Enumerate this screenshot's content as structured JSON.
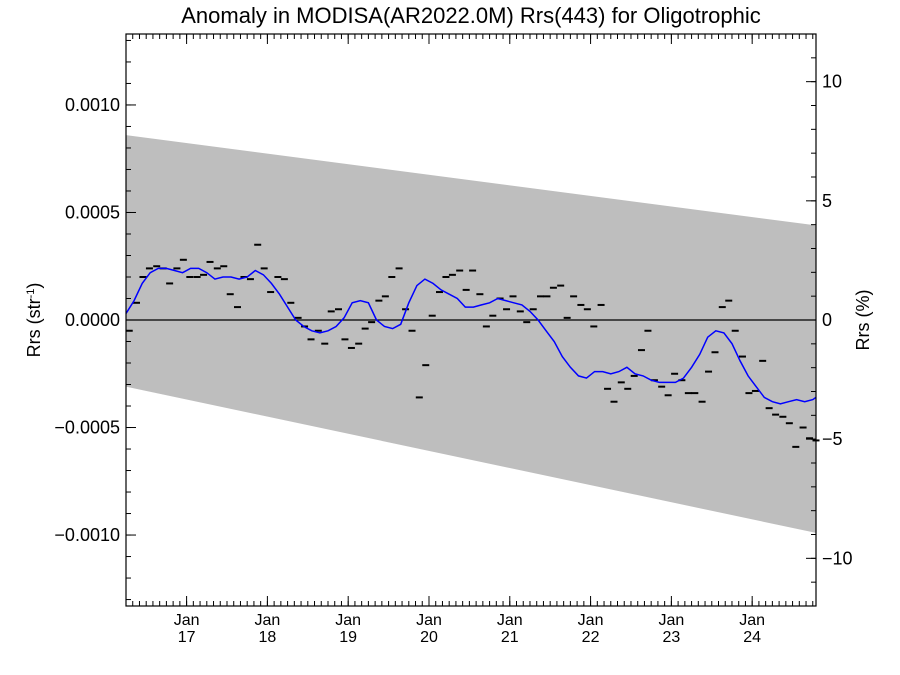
{
  "chart_data": {
    "type": "line",
    "title": "Anomaly in MODISA(AR2022.0M) Rrs(443) for Oligotrophic",
    "ylabel_left": "Rrs (str",
    "ylabel_left_sup": "-1",
    "ylabel_left_close": ")",
    "ylabel_right": "Rrs (%)",
    "xlim": [
      2016.25,
      2024.79
    ],
    "ylim_left": [
      -0.00133,
      0.00133
    ],
    "ylim_right": [
      -12.0,
      12.0
    ],
    "left_ticks": [
      {
        "value": 0.001,
        "label": "0.0010"
      },
      {
        "value": 0.0005,
        "label": "0.0005"
      },
      {
        "value": 0.0,
        "label": "0.0000"
      },
      {
        "value": -0.0005,
        "label": "−0.0005"
      },
      {
        "value": -0.001,
        "label": "−0.0010"
      }
    ],
    "right_ticks": [
      {
        "value": 10,
        "label": "10"
      },
      {
        "value": 5,
        "label": "5"
      },
      {
        "value": 0,
        "label": "0"
      },
      {
        "value": -5,
        "label": "−5"
      },
      {
        "value": -10,
        "label": "−10"
      }
    ],
    "x_ticks": [
      {
        "value": 2017.0,
        "month": "Jan",
        "year": "17"
      },
      {
        "value": 2018.0,
        "month": "Jan",
        "year": "18"
      },
      {
        "value": 2019.0,
        "month": "Jan",
        "year": "19"
      },
      {
        "value": 2020.0,
        "month": "Jan",
        "year": "20"
      },
      {
        "value": 2021.0,
        "month": "Jan",
        "year": "21"
      },
      {
        "value": 2022.0,
        "month": "Jan",
        "year": "22"
      },
      {
        "value": 2023.0,
        "month": "Jan",
        "year": "23"
      },
      {
        "value": 2024.0,
        "month": "Jan",
        "year": "24"
      }
    ],
    "band": {
      "x": [
        2016.25,
        2024.79
      ],
      "upper": [
        0.00086,
        0.00044
      ],
      "lower": [
        -0.00031,
        -0.00099
      ],
      "color": "#bebebe"
    },
    "colors": {
      "band": "#bebebe",
      "smooth_line": "#0000ff",
      "monthly_marks": "#000000",
      "zero_line": "#000000"
    },
    "series": [
      {
        "kind": "monthly-anomaly-marks",
        "x": [
          2016.29,
          2016.38,
          2016.46,
          2016.54,
          2016.63,
          2016.71,
          2016.79,
          2016.88,
          2016.96,
          2017.04,
          2017.13,
          2017.21,
          2017.29,
          2017.38,
          2017.46,
          2017.54,
          2017.63,
          2017.71,
          2017.79,
          2017.88,
          2017.96,
          2018.04,
          2018.13,
          2018.21,
          2018.29,
          2018.38,
          2018.46,
          2018.54,
          2018.63,
          2018.71,
          2018.79,
          2018.88,
          2018.96,
          2019.04,
          2019.13,
          2019.21,
          2019.29,
          2019.38,
          2019.46,
          2019.54,
          2019.63,
          2019.71,
          2019.79,
          2019.88,
          2019.96,
          2020.04,
          2020.13,
          2020.21,
          2020.29,
          2020.38,
          2020.46,
          2020.54,
          2020.63,
          2020.71,
          2020.79,
          2020.88,
          2020.96,
          2021.04,
          2021.13,
          2021.21,
          2021.29,
          2021.38,
          2021.46,
          2021.54,
          2021.63,
          2021.71,
          2021.79,
          2021.88,
          2021.96,
          2022.04,
          2022.13,
          2022.21,
          2022.29,
          2022.38,
          2022.46,
          2022.54,
          2022.63,
          2022.71,
          2022.79,
          2022.88,
          2022.96,
          2023.04,
          2023.13,
          2023.21,
          2023.29,
          2023.38,
          2023.46,
          2023.54,
          2023.63,
          2023.71,
          2023.79,
          2023.88,
          2023.96,
          2024.04,
          2024.13,
          2024.21,
          2024.29,
          2024.38,
          2024.46,
          2024.54,
          2024.63,
          2024.71,
          2024.79
        ],
        "values": [
          -5e-05,
          8e-05,
          0.0002,
          0.00024,
          0.00025,
          0.00024,
          0.00017,
          0.00024,
          0.00028,
          0.0002,
          0.0002,
          0.00021,
          0.00027,
          0.00024,
          0.00025,
          0.00012,
          6e-05,
          0.0002,
          0.00019,
          0.00035,
          0.00024,
          0.00013,
          0.0002,
          0.00019,
          8e-05,
          1e-05,
          -3e-05,
          -9e-05,
          -5e-05,
          -0.00011,
          4e-05,
          5e-05,
          -9e-05,
          -0.00013,
          -0.00011,
          -4e-05,
          -1e-05,
          9e-05,
          0.00011,
          0.0002,
          0.00024,
          5e-05,
          -5e-05,
          -0.00036,
          -0.00021,
          2e-05,
          0.00013,
          0.0002,
          0.00021,
          0.00023,
          0.00014,
          0.00023,
          0.00012,
          -3e-05,
          2e-05,
          0.0001,
          5e-05,
          0.00011,
          4e-05,
          -1e-05,
          5e-05,
          0.00011,
          0.00011,
          0.00015,
          0.00016,
          1e-05,
          0.00011,
          7e-05,
          5e-05,
          -3e-05,
          7e-05,
          -0.00032,
          -0.00038,
          -0.00029,
          -0.00032,
          -0.00026,
          -0.00014,
          -5e-05,
          -0.00028,
          -0.00031,
          -0.00035,
          -0.00025,
          -0.00028,
          -0.00034,
          -0.00034,
          -0.00038,
          -0.00024,
          -0.00015,
          6e-05,
          9e-05,
          -5e-05,
          -0.00017,
          -0.00034,
          -0.00033,
          -0.00019,
          -0.00041,
          -0.00044,
          -0.00045,
          -0.00048,
          -0.00059,
          -0.0005,
          -0.00055,
          -0.00056
        ]
      },
      {
        "kind": "running-mean-line",
        "x": [
          2016.25,
          2016.35,
          2016.45,
          2016.55,
          2016.65,
          2016.75,
          2016.85,
          2016.95,
          2017.05,
          2017.15,
          2017.25,
          2017.35,
          2017.45,
          2017.55,
          2017.65,
          2017.75,
          2017.85,
          2017.95,
          2018.05,
          2018.15,
          2018.25,
          2018.35,
          2018.45,
          2018.55,
          2018.65,
          2018.75,
          2018.85,
          2018.95,
          2019.05,
          2019.15,
          2019.25,
          2019.35,
          2019.45,
          2019.55,
          2019.65,
          2019.75,
          2019.85,
          2019.95,
          2020.05,
          2020.15,
          2020.25,
          2020.35,
          2020.45,
          2020.55,
          2020.65,
          2020.75,
          2020.85,
          2020.95,
          2021.05,
          2021.15,
          2021.25,
          2021.35,
          2021.45,
          2021.55,
          2021.65,
          2021.75,
          2021.85,
          2021.95,
          2022.05,
          2022.15,
          2022.25,
          2022.35,
          2022.45,
          2022.55,
          2022.65,
          2022.75,
          2022.85,
          2022.95,
          2023.05,
          2023.15,
          2023.25,
          2023.35,
          2023.45,
          2023.55,
          2023.65,
          2023.75,
          2023.85,
          2023.95,
          2024.05,
          2024.15,
          2024.25,
          2024.35,
          2024.45,
          2024.55,
          2024.65,
          2024.75,
          2024.79
        ],
        "values": [
          3e-05,
          9e-05,
          0.00017,
          0.00022,
          0.00024,
          0.00024,
          0.00023,
          0.00022,
          0.00024,
          0.00024,
          0.00022,
          0.00019,
          0.0002,
          0.0002,
          0.00019,
          0.0002,
          0.00023,
          0.00021,
          0.00017,
          0.00012,
          6e-05,
          0.0,
          -3e-05,
          -5e-05,
          -6e-05,
          -5e-05,
          -3e-05,
          1e-05,
          8e-05,
          9e-05,
          8e-05,
          0.0,
          -3e-05,
          -4e-05,
          -2e-05,
          8e-05,
          0.00016,
          0.00019,
          0.00017,
          0.00014,
          0.00012,
          0.0001,
          6e-05,
          6e-05,
          7e-05,
          8e-05,
          0.0001,
          9e-05,
          8e-05,
          7e-05,
          4e-05,
          0.0,
          -5e-05,
          -0.0001,
          -0.00017,
          -0.00022,
          -0.00026,
          -0.00027,
          -0.00024,
          -0.00024,
          -0.00025,
          -0.00024,
          -0.00022,
          -0.00025,
          -0.00026,
          -0.00028,
          -0.00029,
          -0.00029,
          -0.00029,
          -0.00027,
          -0.00022,
          -0.00016,
          -8e-05,
          -5e-05,
          -6e-05,
          -0.00011,
          -0.00019,
          -0.00026,
          -0.00031,
          -0.00036,
          -0.00038,
          -0.00039,
          -0.00038,
          -0.00037,
          -0.00038,
          -0.00037,
          -0.00036
        ]
      }
    ],
    "grid": false,
    "legend": "none",
    "zero_line": true
  }
}
